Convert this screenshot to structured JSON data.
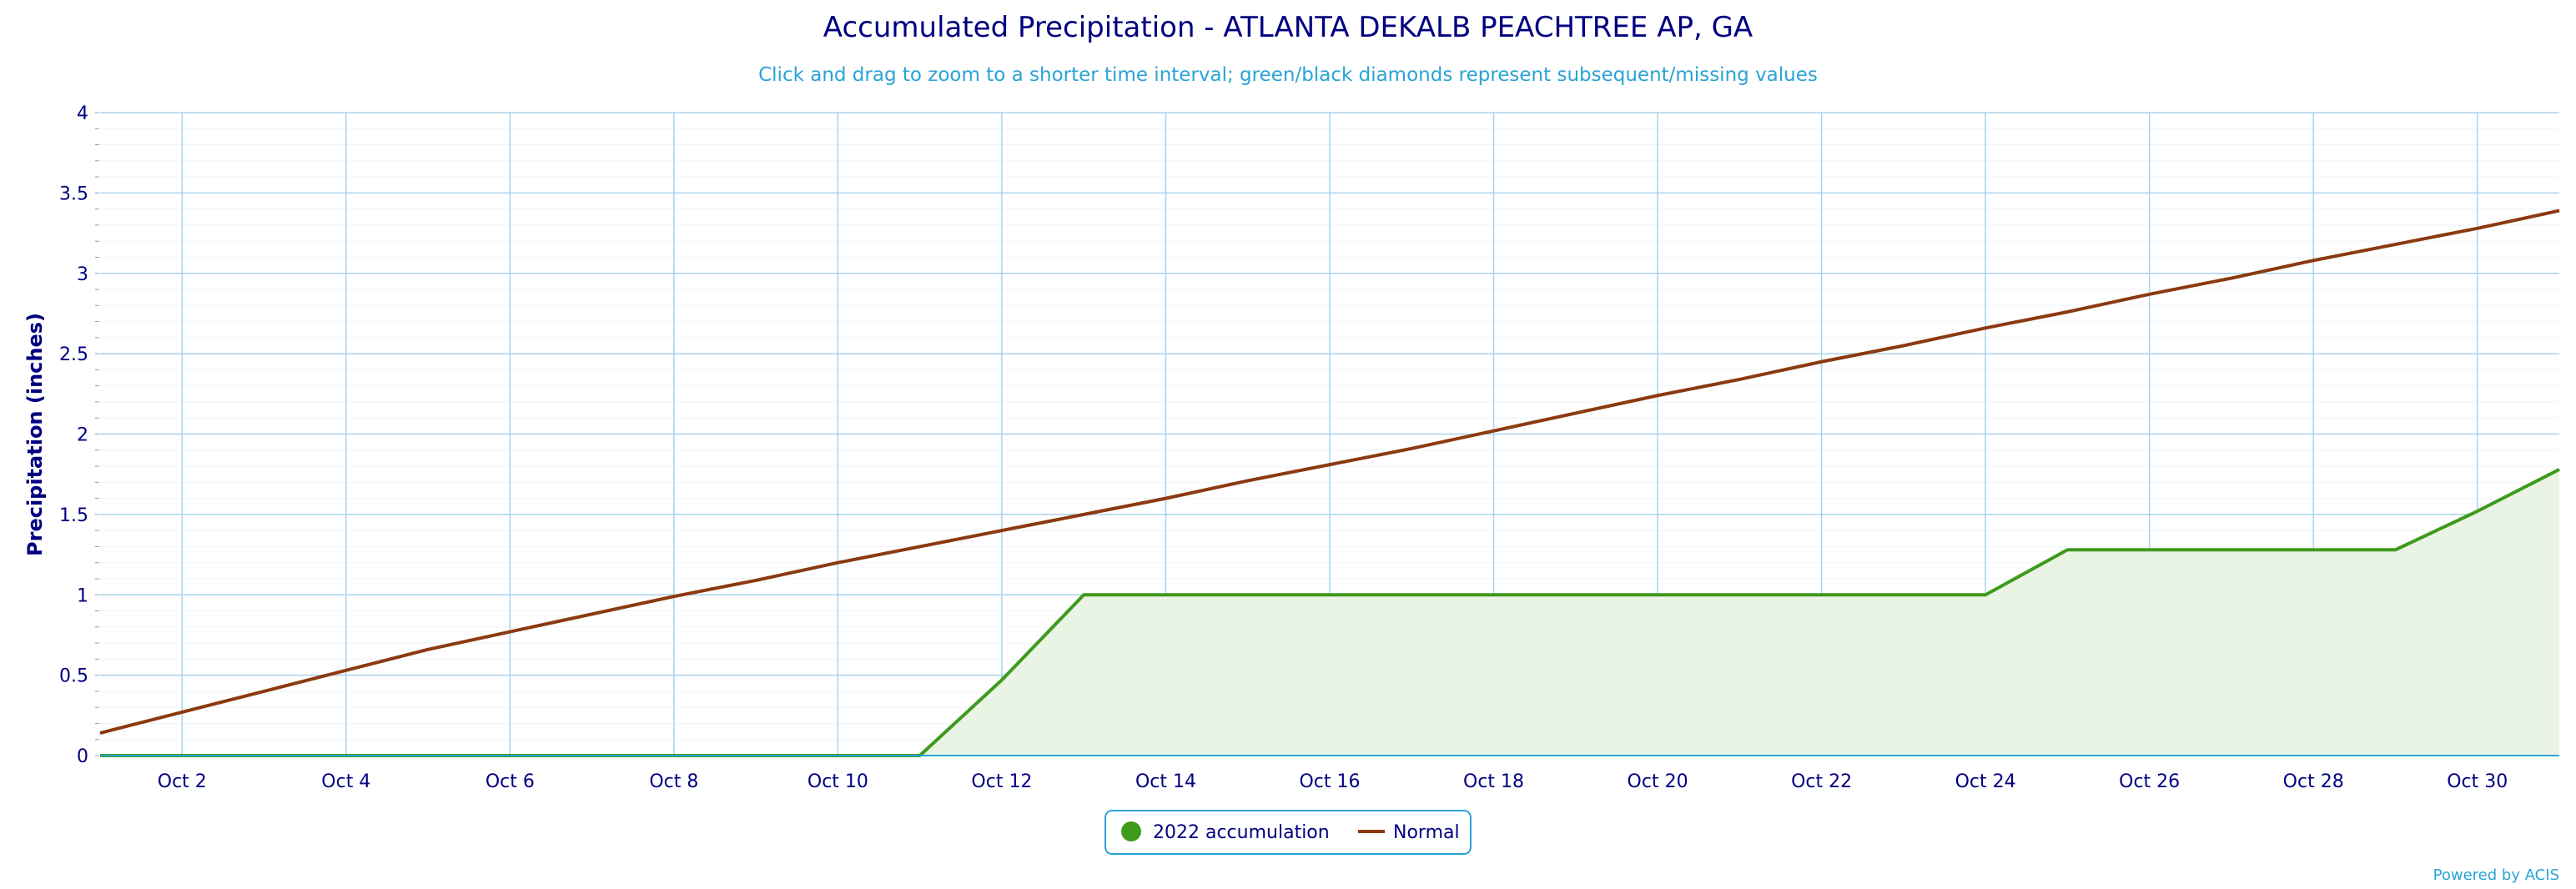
{
  "chart_data": {
    "type": "area",
    "title": "Accumulated Precipitation - ATLANTA DEKALB PEACHTREE AP, GA",
    "subtitle": "Click and drag to zoom to a shorter time interval; green/black diamonds represent subsequent/missing values",
    "xlabel": "",
    "ylabel": "Precipitation (inches)",
    "ylim": [
      0,
      4
    ],
    "xlim": [
      1,
      31
    ],
    "yticks": [
      {
        "value": 0,
        "label": "0"
      },
      {
        "value": 0.5,
        "label": "0.5"
      },
      {
        "value": 1,
        "label": "1"
      },
      {
        "value": 1.5,
        "label": "1.5"
      },
      {
        "value": 2,
        "label": "2"
      },
      {
        "value": 2.5,
        "label": "2.5"
      },
      {
        "value": 3,
        "label": "3"
      },
      {
        "value": 3.5,
        "label": "3.5"
      },
      {
        "value": 4,
        "label": "4"
      }
    ],
    "xticks": [
      {
        "value": 2,
        "label": "Oct 2"
      },
      {
        "value": 4,
        "label": "Oct 4"
      },
      {
        "value": 6,
        "label": "Oct 6"
      },
      {
        "value": 8,
        "label": "Oct 8"
      },
      {
        "value": 10,
        "label": "Oct 10"
      },
      {
        "value": 12,
        "label": "Oct 12"
      },
      {
        "value": 14,
        "label": "Oct 14"
      },
      {
        "value": 16,
        "label": "Oct 16"
      },
      {
        "value": 18,
        "label": "Oct 18"
      },
      {
        "value": 20,
        "label": "Oct 20"
      },
      {
        "value": 22,
        "label": "Oct 22"
      },
      {
        "value": 24,
        "label": "Oct 24"
      },
      {
        "value": 26,
        "label": "Oct 26"
      },
      {
        "value": 28,
        "label": "Oct 28"
      },
      {
        "value": 30,
        "label": "Oct 30"
      }
    ],
    "x": [
      1,
      2,
      3,
      4,
      5,
      6,
      7,
      8,
      9,
      10,
      11,
      12,
      13,
      14,
      15,
      16,
      17,
      18,
      19,
      20,
      21,
      22,
      23,
      24,
      25,
      26,
      27,
      28,
      29,
      30,
      31
    ],
    "series": [
      {
        "name": "2022 accumulation",
        "type": "area",
        "color": "#3e9a1c",
        "fill": "#eaf4e4",
        "values": [
          0,
          0,
          0,
          0,
          0,
          0,
          0,
          0,
          0,
          0,
          0,
          0.47,
          1.0,
          1.0,
          1.0,
          1.0,
          1.0,
          1.0,
          1.0,
          1.0,
          1.0,
          1.0,
          1.0,
          1.0,
          1.28,
          1.28,
          1.28,
          1.28,
          1.28,
          1.52,
          1.78
        ]
      },
      {
        "name": "Normal",
        "type": "line",
        "color": "#8b3a10",
        "values": [
          0.14,
          0.27,
          0.4,
          0.53,
          0.66,
          0.77,
          0.88,
          0.99,
          1.09,
          1.2,
          1.3,
          1.4,
          1.5,
          1.6,
          1.71,
          1.81,
          1.91,
          2.02,
          2.13,
          2.24,
          2.34,
          2.45,
          2.55,
          2.66,
          2.76,
          2.87,
          2.97,
          3.08,
          3.18,
          3.28,
          3.39
        ]
      }
    ],
    "grid": true,
    "legend": "bottom-center",
    "colors": {
      "title": "#000080",
      "subtitle": "#2aa3d6",
      "gridline": "#a9d3ea",
      "axis": "#2aa3d6",
      "legend_border": "#2aa3d6"
    }
  },
  "credit": "Powered by ACIS"
}
